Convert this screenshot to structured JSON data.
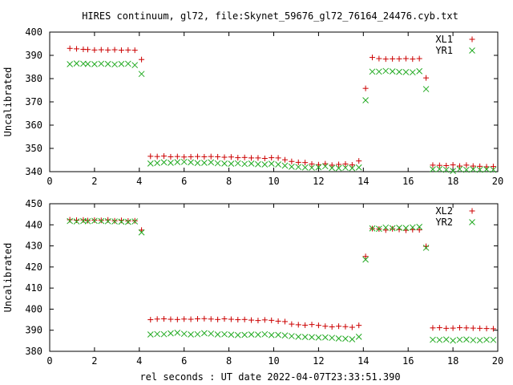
{
  "title": "HIRES continuum, gl72, file:Skynet_59676_gl72_76164_24476.cyb.txt",
  "xlabel": "rel seconds : UT date 2022-04-07T23:33:51.390",
  "colors": {
    "series_red": "#cc0000",
    "series_green": "#22aa22",
    "axis": "#000000"
  },
  "chart_data": [
    {
      "type": "scatter",
      "ylabel": "Uncalibrated",
      "xlim": [
        0,
        20
      ],
      "ylim": [
        340,
        400
      ],
      "x_ticks": [
        "0",
        "2",
        "4",
        "6",
        "8",
        "10",
        "12",
        "14",
        "16",
        "18",
        "20"
      ],
      "y_ticks": [
        "340",
        "350",
        "360",
        "370",
        "380",
        "390",
        "400"
      ],
      "legend_position": "top-right",
      "grid": false,
      "series": [
        {
          "name": "XL1",
          "marker": "plus",
          "color": "#cc0000",
          "x": [
            0.9,
            1.2,
            1.5,
            1.7,
            2.0,
            2.3,
            2.6,
            2.9,
            3.2,
            3.5,
            3.8,
            4.1,
            4.5,
            4.8,
            5.1,
            5.4,
            5.7,
            6.0,
            6.3,
            6.6,
            6.9,
            7.2,
            7.5,
            7.8,
            8.1,
            8.4,
            8.7,
            9.0,
            9.3,
            9.6,
            9.9,
            10.2,
            10.5,
            10.8,
            11.1,
            11.4,
            11.7,
            12.0,
            12.3,
            12.6,
            12.9,
            13.2,
            13.5,
            13.8,
            14.1,
            14.4,
            14.7,
            15.0,
            15.3,
            15.6,
            15.9,
            16.2,
            16.5,
            16.8,
            17.1,
            17.4,
            17.7,
            18.0,
            18.3,
            18.6,
            18.9,
            19.2,
            19.5,
            19.8
          ],
          "y": [
            393,
            392.8,
            392.6,
            392.5,
            392.3,
            392.4,
            392.3,
            392.4,
            392.2,
            392.3,
            392.2,
            388.2,
            346.6,
            346.5,
            346.7,
            346.4,
            346.5,
            346.3,
            346.4,
            346.5,
            346.4,
            346.5,
            346.4,
            346.2,
            346.3,
            346.0,
            346.1,
            345.9,
            345.9,
            345.7,
            346.0,
            345.9,
            345.1,
            344.4,
            344.0,
            343.9,
            343.3,
            343.0,
            343.4,
            342.8,
            343.1,
            343.3,
            342.9,
            344.6,
            375.8,
            389.1,
            388.6,
            388.4,
            388.5,
            388.5,
            388.6,
            388.4,
            388.6,
            380.3,
            342.8,
            342.7,
            342.6,
            342.9,
            342.4,
            342.8,
            342.4,
            342.3,
            342.1,
            342.2
          ]
        },
        {
          "name": "YR1",
          "marker": "cross",
          "color": "#22aa22",
          "x": [
            0.9,
            1.2,
            1.5,
            1.7,
            2.0,
            2.3,
            2.6,
            2.9,
            3.2,
            3.5,
            3.8,
            4.1,
            4.5,
            4.8,
            5.1,
            5.4,
            5.7,
            6.0,
            6.3,
            6.6,
            6.9,
            7.2,
            7.5,
            7.8,
            8.1,
            8.4,
            8.7,
            9.0,
            9.3,
            9.6,
            9.9,
            10.2,
            10.5,
            10.8,
            11.1,
            11.4,
            11.7,
            12.0,
            12.3,
            12.6,
            12.9,
            13.2,
            13.5,
            13.8,
            14.1,
            14.4,
            14.7,
            15.0,
            15.3,
            15.6,
            15.9,
            16.2,
            16.5,
            16.8,
            17.1,
            17.4,
            17.7,
            18.0,
            18.3,
            18.6,
            18.9,
            19.2,
            19.5,
            19.8
          ],
          "y": [
            386.2,
            386.5,
            386.4,
            386.3,
            386.2,
            386.4,
            386.3,
            386.1,
            386.3,
            386.4,
            385.8,
            382,
            343.5,
            343.7,
            344.0,
            343.8,
            344.1,
            344.2,
            344.0,
            343.7,
            343.8,
            344.0,
            343.6,
            343.5,
            343.4,
            343.6,
            343.3,
            343.5,
            343.2,
            343.1,
            343.4,
            343.1,
            342.6,
            342.1,
            342.0,
            341.8,
            341.7,
            341.9,
            342.3,
            341.6,
            341.5,
            341.7,
            341.5,
            341.8,
            370.7,
            383.0,
            383.0,
            383.3,
            383.1,
            382.9,
            382.8,
            382.7,
            383.2,
            375.5,
            341.0,
            341.1,
            340.8,
            340.3,
            341.1,
            340.8,
            341.0,
            340.8,
            341.0,
            340.8
          ]
        }
      ]
    },
    {
      "type": "scatter",
      "ylabel": "Uncalibrated",
      "xlim": [
        0,
        20
      ],
      "ylim": [
        380,
        450
      ],
      "x_ticks": [
        "0",
        "2",
        "4",
        "6",
        "8",
        "10",
        "12",
        "14",
        "16",
        "18",
        "20"
      ],
      "y_ticks": [
        "380",
        "390",
        "400",
        "410",
        "420",
        "430",
        "440",
        "450"
      ],
      "legend_position": "top-right",
      "grid": false,
      "series": [
        {
          "name": "XL2",
          "marker": "plus",
          "color": "#cc0000",
          "x": [
            0.9,
            1.2,
            1.5,
            1.7,
            2.0,
            2.3,
            2.6,
            2.9,
            3.2,
            3.5,
            3.8,
            4.1,
            4.5,
            4.8,
            5.1,
            5.4,
            5.7,
            6.0,
            6.3,
            6.6,
            6.9,
            7.2,
            7.5,
            7.8,
            8.1,
            8.4,
            8.7,
            9.0,
            9.3,
            9.6,
            9.9,
            10.2,
            10.5,
            10.8,
            11.1,
            11.4,
            11.7,
            12.0,
            12.3,
            12.6,
            12.9,
            13.2,
            13.5,
            13.8,
            14.1,
            14.4,
            14.7,
            15.0,
            15.3,
            15.6,
            15.9,
            16.2,
            16.5,
            16.8,
            17.1,
            17.4,
            17.7,
            18.0,
            18.3,
            18.6,
            18.9,
            19.2,
            19.5,
            19.8
          ],
          "y": [
            442.4,
            442.2,
            442.3,
            442.0,
            442.2,
            442.1,
            442.3,
            441.9,
            442.1,
            441.8,
            441.9,
            437.5,
            395.0,
            395.3,
            395.4,
            395.2,
            395.1,
            395.3,
            395.2,
            395.4,
            395.5,
            395.3,
            395.1,
            395.4,
            395.2,
            395.0,
            395.1,
            394.8,
            394.6,
            394.9,
            394.7,
            394.3,
            394.1,
            392.9,
            392.6,
            392.4,
            392.7,
            392.3,
            391.9,
            391.6,
            391.9,
            391.7,
            391.4,
            392.3,
            425.0,
            438.2,
            438.0,
            437.5,
            438.1,
            437.8,
            437.4,
            437.7,
            437.6,
            429.8,
            391.1,
            391.2,
            390.9,
            391.0,
            391.2,
            391.1,
            391.0,
            390.9,
            390.8,
            390.7
          ]
        },
        {
          "name": "YR2",
          "marker": "cross",
          "color": "#22aa22",
          "x": [
            0.9,
            1.2,
            1.5,
            1.7,
            2.0,
            2.3,
            2.6,
            2.9,
            3.2,
            3.5,
            3.8,
            4.1,
            4.5,
            4.8,
            5.1,
            5.4,
            5.7,
            6.0,
            6.3,
            6.6,
            6.9,
            7.2,
            7.5,
            7.8,
            8.1,
            8.4,
            8.7,
            9.0,
            9.3,
            9.6,
            9.9,
            10.2,
            10.5,
            10.8,
            11.1,
            11.4,
            11.7,
            12.0,
            12.3,
            12.6,
            12.9,
            13.2,
            13.5,
            13.8,
            14.1,
            14.4,
            14.7,
            15.0,
            15.3,
            15.6,
            15.9,
            16.2,
            16.5,
            16.8,
            17.1,
            17.4,
            17.7,
            18.0,
            18.3,
            18.6,
            18.9,
            19.2,
            19.5,
            19.8
          ],
          "y": [
            441.8,
            441.6,
            441.8,
            441.7,
            441.9,
            441.8,
            441.7,
            441.6,
            441.5,
            441.4,
            441.6,
            436.4,
            388.0,
            388.2,
            388.1,
            388.5,
            388.8,
            388.3,
            388.0,
            388.1,
            388.6,
            388.4,
            388.0,
            388.1,
            387.9,
            387.7,
            387.8,
            388.0,
            387.9,
            388.1,
            387.7,
            387.8,
            387.5,
            387.2,
            386.9,
            386.8,
            386.7,
            386.5,
            386.6,
            386.4,
            386.1,
            386.0,
            385.7,
            386.9,
            423.5,
            438.3,
            438.1,
            438.7,
            438.4,
            438.6,
            438.5,
            438.8,
            439.0,
            429.1,
            385.5,
            385.4,
            385.6,
            385.1,
            385.5,
            385.6,
            385.3,
            385.2,
            385.5,
            385.4
          ]
        }
      ]
    }
  ]
}
